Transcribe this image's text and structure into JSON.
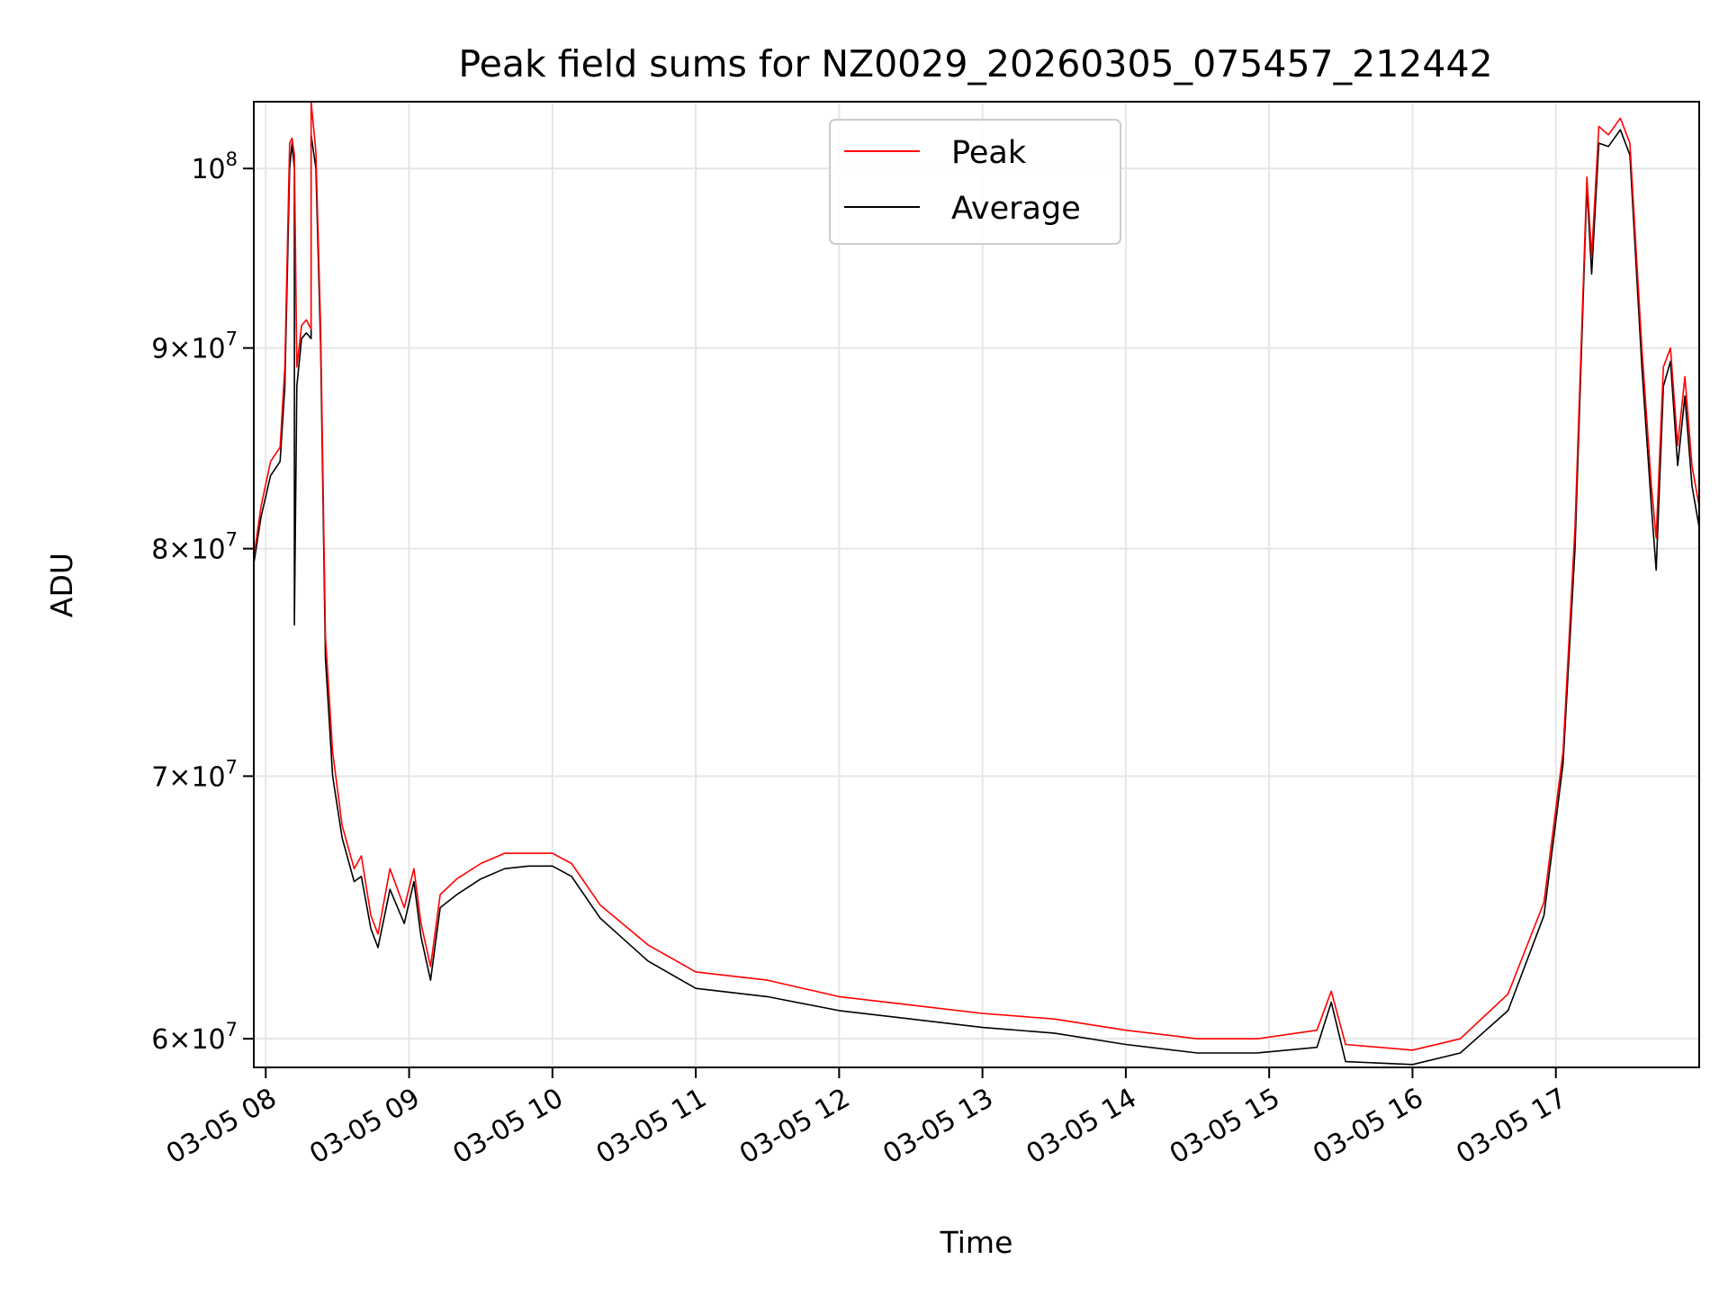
{
  "chart_data": {
    "type": "line",
    "title": "Peak field sums for NZ0029_20260305_075457_212442",
    "xlabel": "Time",
    "ylabel": "ADU",
    "y_scale": "log",
    "ylim": [
      59000000,
      104000000
    ],
    "xlim": [
      "2026-03-05T07:55",
      "2026-03-05T18:00"
    ],
    "grid": true,
    "legend_position": "top-center",
    "x_ticks": [
      {
        "t": "2026-03-05T08:00",
        "label": "03-05 08"
      },
      {
        "t": "2026-03-05T09:00",
        "label": "03-05 09"
      },
      {
        "t": "2026-03-05T10:00",
        "label": "03-05 10"
      },
      {
        "t": "2026-03-05T11:00",
        "label": "03-05 11"
      },
      {
        "t": "2026-03-05T12:00",
        "label": "03-05 12"
      },
      {
        "t": "2026-03-05T13:00",
        "label": "03-05 13"
      },
      {
        "t": "2026-03-05T14:00",
        "label": "03-05 14"
      },
      {
        "t": "2026-03-05T15:00",
        "label": "03-05 15"
      },
      {
        "t": "2026-03-05T16:00",
        "label": "03-05 16"
      },
      {
        "t": "2026-03-05T17:00",
        "label": "03-05 17"
      }
    ],
    "y_ticks": [
      {
        "value": 60000000,
        "mantissa": "6",
        "exp": "7"
      },
      {
        "value": 70000000,
        "mantissa": "7",
        "exp": "7"
      },
      {
        "value": 80000000,
        "mantissa": "8",
        "exp": "7"
      },
      {
        "value": 90000000,
        "mantissa": "9",
        "exp": "7"
      },
      {
        "value": 100000000,
        "mantissa": "",
        "exp": "8"
      }
    ],
    "series": [
      {
        "name": "Average",
        "color": "#000000",
        "points": [
          [
            "2026-03-05T07:55",
            79300000
          ],
          [
            "2026-03-05T07:58",
            81500000
          ],
          [
            "2026-03-05T08:02",
            83500000
          ],
          [
            "2026-03-05T08:06",
            84200000
          ],
          [
            "2026-03-05T08:08",
            88000000
          ],
          [
            "2026-03-05T08:10",
            100000000
          ],
          [
            "2026-03-05T08:11",
            101500000
          ],
          [
            "2026-03-05T08:12",
            100000000
          ],
          [
            "2026-03-05T08:12",
            76500000
          ],
          [
            "2026-03-05T08:13",
            88000000
          ],
          [
            "2026-03-05T08:15",
            90500000
          ],
          [
            "2026-03-05T08:17",
            90800000
          ],
          [
            "2026-03-05T08:19",
            90500000
          ],
          [
            "2026-03-05T08:19",
            102000000
          ],
          [
            "2026-03-05T08:21",
            100000000
          ],
          [
            "2026-03-05T08:23",
            90000000
          ],
          [
            "2026-03-05T08:25",
            75000000
          ],
          [
            "2026-03-05T08:28",
            70000000
          ],
          [
            "2026-03-05T08:32",
            67500000
          ],
          [
            "2026-03-05T08:37",
            65800000
          ],
          [
            "2026-03-05T08:40",
            66000000
          ],
          [
            "2026-03-05T08:44",
            64000000
          ],
          [
            "2026-03-05T08:47",
            63300000
          ],
          [
            "2026-03-05T08:52",
            65500000
          ],
          [
            "2026-03-05T08:58",
            64200000
          ],
          [
            "2026-03-05T09:02",
            65800000
          ],
          [
            "2026-03-05T09:05",
            63700000
          ],
          [
            "2026-03-05T09:09",
            62100000
          ],
          [
            "2026-03-05T09:13",
            64800000
          ],
          [
            "2026-03-05T09:20",
            65300000
          ],
          [
            "2026-03-05T09:30",
            65900000
          ],
          [
            "2026-03-05T09:40",
            66300000
          ],
          [
            "2026-03-05T09:50",
            66400000
          ],
          [
            "2026-03-05T10:00",
            66400000
          ],
          [
            "2026-03-05T10:08",
            66000000
          ],
          [
            "2026-03-05T10:20",
            64400000
          ],
          [
            "2026-03-05T10:40",
            62800000
          ],
          [
            "2026-03-05T11:00",
            61800000
          ],
          [
            "2026-03-05T11:30",
            61500000
          ],
          [
            "2026-03-05T12:00",
            61000000
          ],
          [
            "2026-03-05T12:30",
            60700000
          ],
          [
            "2026-03-05T13:00",
            60400000
          ],
          [
            "2026-03-05T13:30",
            60200000
          ],
          [
            "2026-03-05T14:00",
            59800000
          ],
          [
            "2026-03-05T14:30",
            59500000
          ],
          [
            "2026-03-05T14:55",
            59500000
          ],
          [
            "2026-03-05T15:20",
            59700000
          ],
          [
            "2026-03-05T15:26",
            61300000
          ],
          [
            "2026-03-05T15:32",
            59200000
          ],
          [
            "2026-03-05T16:00",
            59100000
          ],
          [
            "2026-03-05T16:20",
            59500000
          ],
          [
            "2026-03-05T16:40",
            61000000
          ],
          [
            "2026-03-05T16:55",
            64500000
          ],
          [
            "2026-03-05T17:03",
            70500000
          ],
          [
            "2026-03-05T17:08",
            80000000
          ],
          [
            "2026-03-05T17:13",
            99000000
          ],
          [
            "2026-03-05T17:15",
            94000000
          ],
          [
            "2026-03-05T17:18",
            101500000
          ],
          [
            "2026-03-05T17:22",
            101300000
          ],
          [
            "2026-03-05T17:27",
            102300000
          ],
          [
            "2026-03-05T17:31",
            100800000
          ],
          [
            "2026-03-05T17:36",
            89000000
          ],
          [
            "2026-03-05T17:40",
            82000000
          ],
          [
            "2026-03-05T17:42",
            79000000
          ],
          [
            "2026-03-05T17:45",
            88000000
          ],
          [
            "2026-03-05T17:48",
            89300000
          ],
          [
            "2026-03-05T17:51",
            84000000
          ],
          [
            "2026-03-05T17:54",
            87500000
          ],
          [
            "2026-03-05T17:57",
            83000000
          ],
          [
            "2026-03-05T18:00",
            81000000
          ]
        ]
      },
      {
        "name": "Peak",
        "color": "#ff0000",
        "points": [
          [
            "2026-03-05T07:55",
            79600000
          ],
          [
            "2026-03-05T07:58",
            82000000
          ],
          [
            "2026-03-05T08:02",
            84200000
          ],
          [
            "2026-03-05T08:06",
            84900000
          ],
          [
            "2026-03-05T08:08",
            89000000
          ],
          [
            "2026-03-05T08:10",
            101500000
          ],
          [
            "2026-03-05T08:11",
            101800000
          ],
          [
            "2026-03-05T08:12",
            100800000
          ],
          [
            "2026-03-05T08:13",
            89000000
          ],
          [
            "2026-03-05T08:15",
            91200000
          ],
          [
            "2026-03-05T08:17",
            91500000
          ],
          [
            "2026-03-05T08:19",
            91000000
          ],
          [
            "2026-03-05T08:19",
            104000000
          ],
          [
            "2026-03-05T08:21",
            101000000
          ],
          [
            "2026-03-05T08:23",
            91000000
          ],
          [
            "2026-03-05T08:25",
            76000000
          ],
          [
            "2026-03-05T08:28",
            71000000
          ],
          [
            "2026-03-05T08:32",
            68000000
          ],
          [
            "2026-03-05T08:37",
            66300000
          ],
          [
            "2026-03-05T08:40",
            66800000
          ],
          [
            "2026-03-05T08:44",
            64500000
          ],
          [
            "2026-03-05T08:47",
            63800000
          ],
          [
            "2026-03-05T08:52",
            66300000
          ],
          [
            "2026-03-05T08:58",
            64800000
          ],
          [
            "2026-03-05T09:02",
            66300000
          ],
          [
            "2026-03-05T09:05",
            64200000
          ],
          [
            "2026-03-05T09:09",
            62600000
          ],
          [
            "2026-03-05T09:13",
            65300000
          ],
          [
            "2026-03-05T09:20",
            65900000
          ],
          [
            "2026-03-05T09:30",
            66500000
          ],
          [
            "2026-03-05T09:40",
            66900000
          ],
          [
            "2026-03-05T09:50",
            66900000
          ],
          [
            "2026-03-05T10:00",
            66900000
          ],
          [
            "2026-03-05T10:08",
            66500000
          ],
          [
            "2026-03-05T10:20",
            64900000
          ],
          [
            "2026-03-05T10:40",
            63400000
          ],
          [
            "2026-03-05T11:00",
            62400000
          ],
          [
            "2026-03-05T11:30",
            62100000
          ],
          [
            "2026-03-05T12:00",
            61500000
          ],
          [
            "2026-03-05T12:30",
            61200000
          ],
          [
            "2026-03-05T13:00",
            60900000
          ],
          [
            "2026-03-05T13:30",
            60700000
          ],
          [
            "2026-03-05T14:00",
            60300000
          ],
          [
            "2026-03-05T14:30",
            60000000
          ],
          [
            "2026-03-05T14:55",
            60000000
          ],
          [
            "2026-03-05T15:20",
            60300000
          ],
          [
            "2026-03-05T15:26",
            61700000
          ],
          [
            "2026-03-05T15:32",
            59800000
          ],
          [
            "2026-03-05T16:00",
            59600000
          ],
          [
            "2026-03-05T16:20",
            60000000
          ],
          [
            "2026-03-05T16:40",
            61600000
          ],
          [
            "2026-03-05T16:55",
            65000000
          ],
          [
            "2026-03-05T17:03",
            71000000
          ],
          [
            "2026-03-05T17:08",
            81000000
          ],
          [
            "2026-03-05T17:13",
            99500000
          ],
          [
            "2026-03-05T17:15",
            95000000
          ],
          [
            "2026-03-05T17:18",
            102500000
          ],
          [
            "2026-03-05T17:22",
            102000000
          ],
          [
            "2026-03-05T17:27",
            103000000
          ],
          [
            "2026-03-05T17:31",
            101500000
          ],
          [
            "2026-03-05T17:36",
            90000000
          ],
          [
            "2026-03-05T17:40",
            83000000
          ],
          [
            "2026-03-05T17:42",
            80500000
          ],
          [
            "2026-03-05T17:45",
            89000000
          ],
          [
            "2026-03-05T17:48",
            90000000
          ],
          [
            "2026-03-05T17:51",
            85000000
          ],
          [
            "2026-03-05T17:54",
            88500000
          ],
          [
            "2026-03-05T17:57",
            84000000
          ],
          [
            "2026-03-05T18:00",
            82000000
          ]
        ]
      }
    ],
    "legend": [
      {
        "name": "Peak",
        "color": "#ff0000"
      },
      {
        "name": "Average",
        "color": "#000000"
      }
    ]
  }
}
